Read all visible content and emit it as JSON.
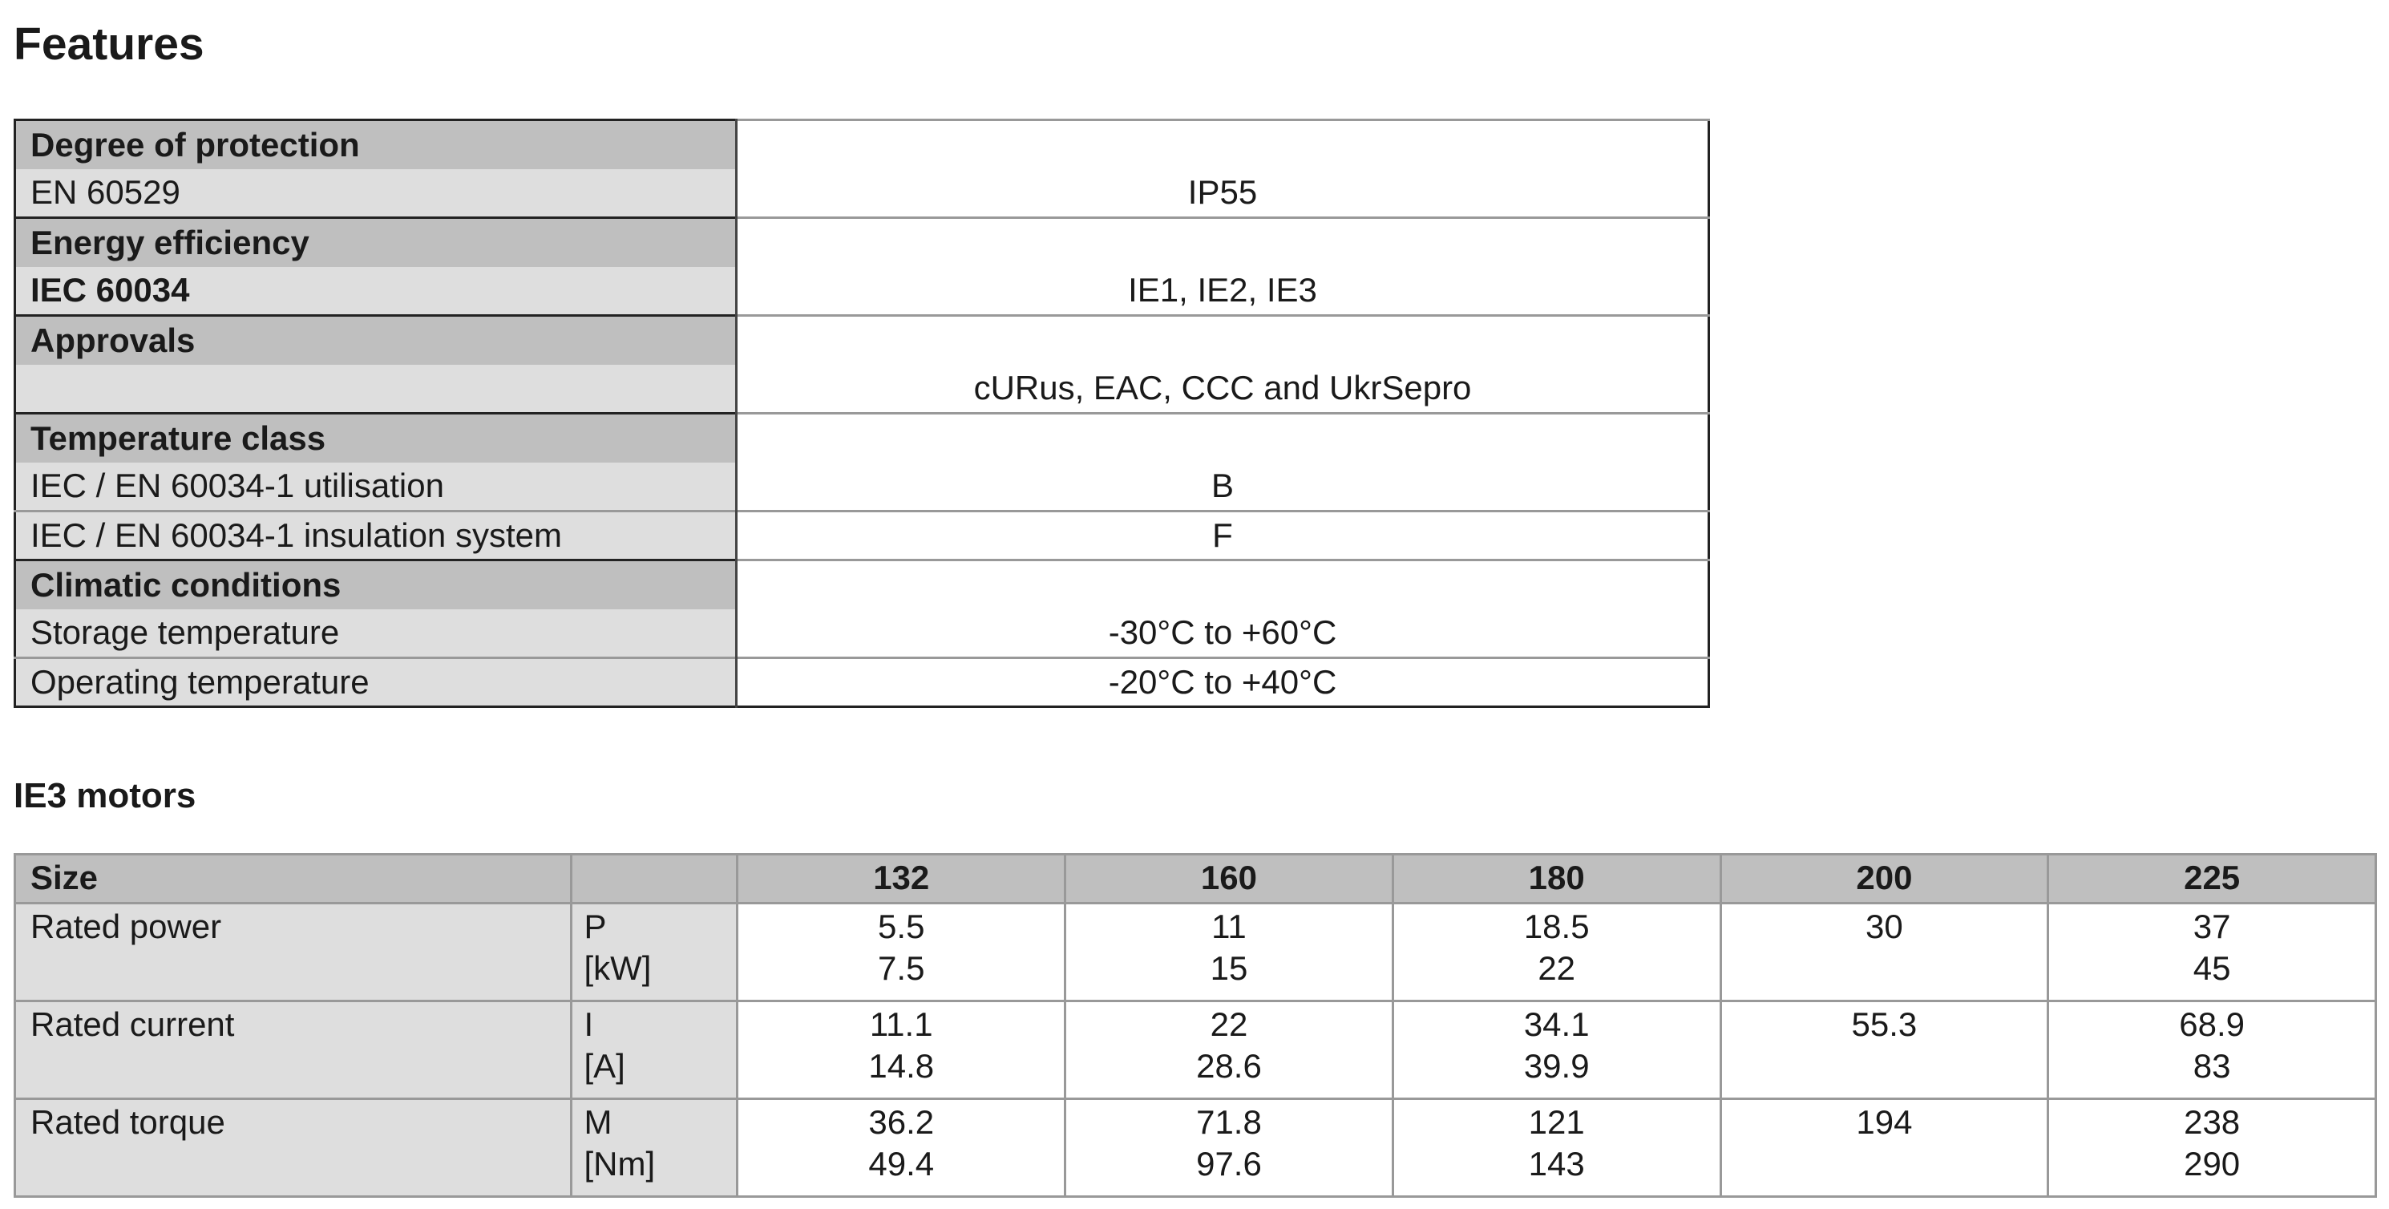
{
  "title": "Features",
  "features": {
    "groups": [
      {
        "heading": "Degree of protection",
        "rows": [
          {
            "label": "EN 60529",
            "value": "IP55"
          }
        ]
      },
      {
        "heading": "Energy efficiency",
        "rows": [
          {
            "label": "IEC 60034",
            "value": "IE1, IE2, IE3"
          }
        ]
      },
      {
        "heading": "Approvals",
        "rows": [
          {
            "value": "cURus, EAC, CCC and UkrSepro"
          }
        ]
      },
      {
        "heading": "Temperature class",
        "rows": [
          {
            "label": "IEC / EN 60034-1 utilisation",
            "value": "B"
          },
          {
            "label": "IEC / EN 60034-1 insulation system",
            "value": "F"
          }
        ]
      },
      {
        "heading": "Climatic conditions",
        "rows": [
          {
            "label": "Storage temperature",
            "value": "-30°C to +60°C"
          },
          {
            "label": "Operating temperature",
            "value": "-20°C to +40°C"
          }
        ]
      }
    ]
  },
  "ie3": {
    "title": "IE3 motors",
    "header": {
      "label": "Size",
      "sizes": [
        "132",
        "160",
        "180",
        "200",
        "225"
      ]
    },
    "rows": [
      {
        "label": "Rated power",
        "symbol": "P",
        "unit": "[kW]",
        "values": [
          [
            "5.5",
            "7.5"
          ],
          [
            "11",
            "15"
          ],
          [
            "18.5",
            "22"
          ],
          [
            "30"
          ],
          [
            "37",
            "45"
          ]
        ]
      },
      {
        "label": "Rated current",
        "symbol": "I",
        "unit": "[A]",
        "values": [
          [
            "11.1",
            "14.8"
          ],
          [
            "22",
            "28.6"
          ],
          [
            "34.1",
            "39.9"
          ],
          [
            "55.3"
          ],
          [
            "68.9",
            "83"
          ]
        ]
      },
      {
        "label": "Rated torque",
        "symbol": "M",
        "unit": "[Nm]",
        "values": [
          [
            "36.2",
            "49.4"
          ],
          [
            "71.8",
            "97.6"
          ],
          [
            "121",
            "143"
          ],
          [
            "194"
          ],
          [
            "238",
            "290"
          ]
        ]
      }
    ]
  }
}
